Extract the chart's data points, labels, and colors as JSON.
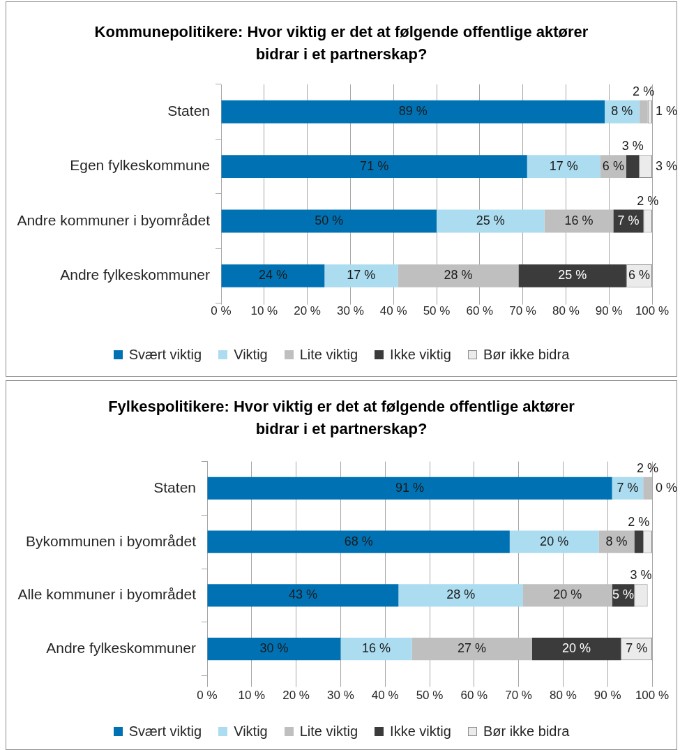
{
  "chart_data": [
    {
      "type": "bar",
      "orientation": "horizontal",
      "stacked": true,
      "title": "Kommunepolitikere: Hvor viktig er det at følgende offentlige aktører bidrar i et partnerskap?",
      "categories": [
        "Staten",
        "Egen fylkeskommune",
        "Andre kommuner i byområdet",
        "Andre fylkeskommuner"
      ],
      "series": [
        {
          "name": "Svært viktig",
          "color": "#0072b4",
          "values": [
            89,
            71,
            50,
            24
          ],
          "value_labels": [
            "89 %",
            "71 %",
            "50 %",
            "24 %"
          ]
        },
        {
          "name": "Viktig",
          "color": "#acdcef",
          "values": [
            8,
            17,
            25,
            17
          ],
          "value_labels": [
            "8 %",
            "17 %",
            "25 %",
            "17 %"
          ]
        },
        {
          "name": "Lite viktig",
          "color": "#bfbfbf",
          "values": [
            2,
            6,
            16,
            28
          ],
          "value_labels": [
            "2 %",
            "6 %",
            "16 %",
            "28 %"
          ]
        },
        {
          "name": "Ikke viktig",
          "color": "#3b3b3b",
          "values": [
            0,
            3,
            7,
            25
          ],
          "value_labels": [
            null,
            "3 %",
            "7 %",
            "25 %"
          ]
        },
        {
          "name": "Bør ikke bidra",
          "color": "#ebebeb",
          "values": [
            1,
            3,
            2,
            6
          ],
          "value_labels": [
            "1 %",
            "3 %",
            "2 %",
            "6 %"
          ]
        }
      ],
      "xlim": [
        0,
        100
      ],
      "xticks": [
        {
          "value": 0,
          "label": "0 %"
        },
        {
          "value": 10,
          "label": "10 %"
        },
        {
          "value": 20,
          "label": "20 %"
        },
        {
          "value": 30,
          "label": "30 %"
        },
        {
          "value": 40,
          "label": "40 %"
        },
        {
          "value": 50,
          "label": "50 %"
        },
        {
          "value": 60,
          "label": "60 %"
        },
        {
          "value": 70,
          "label": "70 %"
        },
        {
          "value": 80,
          "label": "80 %"
        },
        {
          "value": 90,
          "label": "90 %"
        },
        {
          "value": 100,
          "label": "100 %"
        }
      ],
      "grid": "x",
      "legend": "bottom"
    },
    {
      "type": "bar",
      "orientation": "horizontal",
      "stacked": true,
      "title": "Fylkespolitikere: Hvor viktig er det at følgende offentlige aktører bidrar i et partnerskap?",
      "categories": [
        "Staten",
        "Bykommunen i byområdet",
        "Alle kommuner i byområdet",
        "Andre fylkeskommuner"
      ],
      "series": [
        {
          "name": "Svært viktig",
          "color": "#0072b4",
          "values": [
            91,
            68,
            43,
            30
          ],
          "value_labels": [
            "91 %",
            "68 %",
            "43 %",
            "30 %"
          ]
        },
        {
          "name": "Viktig",
          "color": "#acdcef",
          "values": [
            7,
            20,
            28,
            16
          ],
          "value_labels": [
            "7 %",
            "20 %",
            "28 %",
            "16 %"
          ]
        },
        {
          "name": "Lite viktig",
          "color": "#bfbfbf",
          "values": [
            2,
            8,
            20,
            27
          ],
          "value_labels": [
            "2 %",
            "8 %",
            "20 %",
            "27 %"
          ]
        },
        {
          "name": "Ikke viktig",
          "color": "#3b3b3b",
          "values": [
            0,
            2,
            5,
            20
          ],
          "value_labels": [
            "0 %",
            "2 %",
            "5 %",
            "20 %"
          ]
        },
        {
          "name": "Bør ikke bidra",
          "color": "#ebebeb",
          "values": [
            0,
            2,
            3,
            7
          ],
          "value_labels": [
            null,
            null,
            "3 %",
            "7 %"
          ]
        }
      ],
      "xlim": [
        0,
        100
      ],
      "xticks": [
        {
          "value": 0,
          "label": "0 %"
        },
        {
          "value": 10,
          "label": "10 %"
        },
        {
          "value": 20,
          "label": "20 %"
        },
        {
          "value": 30,
          "label": "30 %"
        },
        {
          "value": 40,
          "label": "40 %"
        },
        {
          "value": 50,
          "label": "50 %"
        },
        {
          "value": 60,
          "label": "60 %"
        },
        {
          "value": 70,
          "label": "70 %"
        },
        {
          "value": 80,
          "label": "80 %"
        },
        {
          "value": 90,
          "label": "90 %"
        },
        {
          "value": 100,
          "label": "100 %"
        }
      ],
      "grid": "x",
      "legend": "bottom"
    }
  ]
}
